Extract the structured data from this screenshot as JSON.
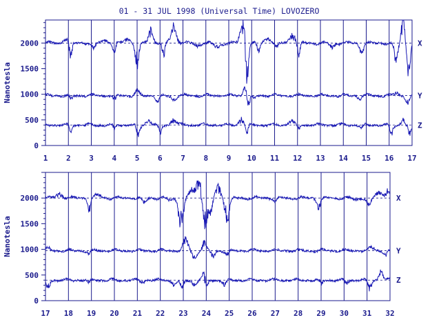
{
  "title": "01 - 31 JUL 1998 (Universal Time) LOVOZERO",
  "colors": {
    "ink": "#1a1a8c",
    "trace": "#1818b4",
    "baseline": "#1a1a8c"
  },
  "chart_data": [
    {
      "type": "line",
      "panel": "top",
      "ylabel": "Nanotesla",
      "ylim": [
        0,
        2450
      ],
      "yticks": [
        "0",
        "500",
        "1000",
        "1500",
        "2000"
      ],
      "xlim": [
        1,
        17
      ],
      "xticks": [
        "1",
        "2",
        "3",
        "4",
        "5",
        "6",
        "7",
        "8",
        "9",
        "10",
        "11",
        "12",
        "13",
        "14",
        "15",
        "16",
        "17"
      ],
      "grid": "vertical lines at each day",
      "series": [
        {
          "name": "X",
          "baseline": 2000
        },
        {
          "name": "Y",
          "baseline": 975
        },
        {
          "name": "Z",
          "baseline": 400
        }
      ],
      "events": {
        "X": [
          [
            1.9,
            90,
            0.15
          ],
          [
            2.1,
            -280,
            0.08
          ],
          [
            3.1,
            -120,
            0.1
          ],
          [
            3.6,
            60,
            0.2
          ],
          [
            4.0,
            -200,
            0.08
          ],
          [
            4.6,
            80,
            0.2
          ],
          [
            5.0,
            -350,
            0.12
          ],
          [
            5.6,
            200,
            0.15
          ],
          [
            6.15,
            -250,
            0.08
          ],
          [
            6.6,
            300,
            0.18
          ],
          [
            7.6,
            -60,
            0.15
          ],
          [
            8.5,
            -80,
            0.2
          ],
          [
            9.6,
            350,
            0.15
          ],
          [
            9.8,
            -700,
            0.08
          ],
          [
            10.3,
            -150,
            0.1
          ],
          [
            10.7,
            90,
            0.2
          ],
          [
            11.1,
            -80,
            0.12
          ],
          [
            11.8,
            150,
            0.2
          ],
          [
            12.05,
            -250,
            0.08
          ],
          [
            13.5,
            -80,
            0.15
          ],
          [
            14.8,
            -150,
            0.12
          ],
          [
            16.3,
            -300,
            0.12
          ],
          [
            16.6,
            450,
            0.1
          ],
          [
            16.85,
            -500,
            0.1
          ]
        ],
        "Y": [
          [
            2.1,
            -80,
            0.1
          ],
          [
            4.0,
            -100,
            0.1
          ],
          [
            5.0,
            100,
            0.12
          ],
          [
            5.9,
            -120,
            0.12
          ],
          [
            6.6,
            -70,
            0.15
          ],
          [
            9.7,
            200,
            0.1
          ],
          [
            9.85,
            -180,
            0.1
          ],
          [
            10.1,
            -60,
            0.1
          ],
          [
            14.7,
            -60,
            0.1
          ],
          [
            16.3,
            60,
            0.12
          ],
          [
            16.8,
            -120,
            0.12
          ]
        ],
        "Z": [
          [
            2.1,
            -120,
            0.08
          ],
          [
            4.0,
            -100,
            0.08
          ],
          [
            5.05,
            -220,
            0.1
          ],
          [
            5.5,
            100,
            0.15
          ],
          [
            6.0,
            -150,
            0.1
          ],
          [
            6.6,
            120,
            0.15
          ],
          [
            9.55,
            100,
            0.15
          ],
          [
            9.8,
            -150,
            0.08
          ],
          [
            11.7,
            90,
            0.15
          ],
          [
            12.05,
            -80,
            0.08
          ],
          [
            14.8,
            -80,
            0.08
          ],
          [
            16.1,
            -150,
            0.1
          ],
          [
            16.6,
            100,
            0.1
          ],
          [
            16.9,
            -180,
            0.1
          ]
        ]
      }
    },
    {
      "type": "line",
      "panel": "bottom",
      "ylabel": "Nanotesla",
      "ylim": [
        0,
        2500
      ],
      "yticks": [
        "0",
        "500",
        "1000",
        "1500",
        "2000"
      ],
      "xlim": [
        17,
        32
      ],
      "xticks": [
        "17",
        "18",
        "19",
        "20",
        "21",
        "22",
        "23",
        "24",
        "25",
        "26",
        "27",
        "28",
        "29",
        "30",
        "31",
        "32"
      ],
      "grid": "vertical lines at each day",
      "series": [
        {
          "name": "X",
          "baseline": 2000
        },
        {
          "name": "Y",
          "baseline": 975
        },
        {
          "name": "Z",
          "baseline": 400
        }
      ],
      "events": {
        "X": [
          [
            17.6,
            80,
            0.2
          ],
          [
            18.9,
            -200,
            0.08
          ],
          [
            19.3,
            50,
            0.2
          ],
          [
            21.3,
            -80,
            0.12
          ],
          [
            22.4,
            -50,
            0.15
          ],
          [
            22.9,
            -450,
            0.15
          ],
          [
            23.4,
            150,
            0.2
          ],
          [
            23.7,
            300,
            0.15
          ],
          [
            23.95,
            -500,
            0.15
          ],
          [
            24.2,
            -250,
            0.12
          ],
          [
            24.5,
            200,
            0.2
          ],
          [
            24.9,
            -350,
            0.15
          ],
          [
            27.0,
            -60,
            0.1
          ],
          [
            28.9,
            -150,
            0.12
          ],
          [
            30.5,
            -40,
            0.15
          ],
          [
            31.1,
            -150,
            0.12
          ],
          [
            31.5,
            100,
            0.2
          ],
          [
            31.9,
            150,
            0.15
          ]
        ],
        "Y": [
          [
            17.1,
            50,
            0.15
          ],
          [
            18.9,
            -60,
            0.1
          ],
          [
            23.1,
            180,
            0.15
          ],
          [
            23.5,
            -120,
            0.15
          ],
          [
            23.9,
            150,
            0.12
          ],
          [
            24.3,
            -100,
            0.12
          ],
          [
            24.9,
            -80,
            0.12
          ],
          [
            31.2,
            60,
            0.15
          ],
          [
            31.8,
            -70,
            0.12
          ]
        ],
        "Z": [
          [
            17.1,
            -150,
            0.1
          ],
          [
            18.9,
            -80,
            0.08
          ],
          [
            21.2,
            -50,
            0.1
          ],
          [
            22.6,
            -70,
            0.15
          ],
          [
            22.95,
            -150,
            0.1
          ],
          [
            23.5,
            -100,
            0.12
          ],
          [
            23.9,
            150,
            0.12
          ],
          [
            24.0,
            -200,
            0.08
          ],
          [
            24.8,
            -120,
            0.1
          ],
          [
            29.0,
            -80,
            0.1
          ],
          [
            30.1,
            -70,
            0.1
          ],
          [
            31.1,
            -150,
            0.12
          ],
          [
            31.6,
            150,
            0.12
          ]
        ]
      }
    }
  ]
}
